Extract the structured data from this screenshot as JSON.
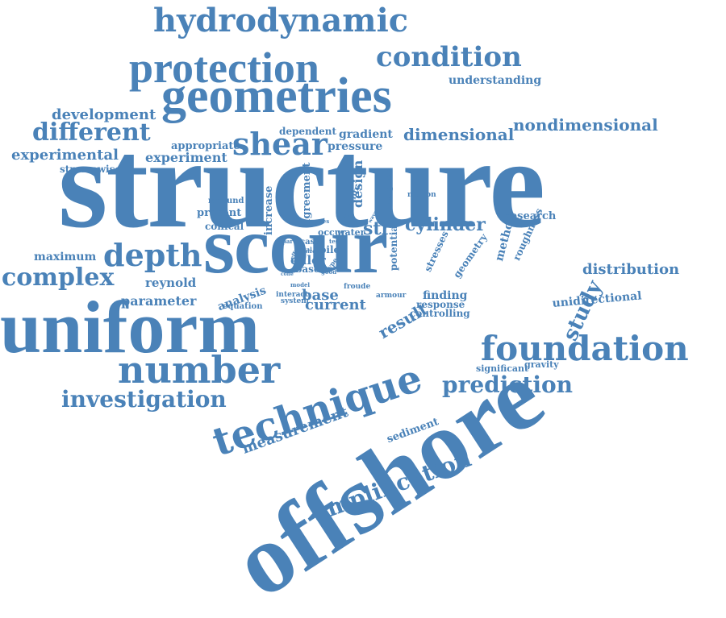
{
  "cloud": {
    "color": "#4a82b8",
    "words": [
      "hydrodynamic",
      "protection",
      "condition",
      "geometries",
      "understanding",
      "development",
      "different",
      "nondimensional",
      "shear",
      "dependent",
      "gradient",
      "dimensional",
      "appropriate",
      "pressure",
      "experimental",
      "experiment",
      "streamwise",
      "structure",
      "increase",
      "agreement",
      "mobility",
      "designer",
      "motion",
      "design",
      "roulund",
      "present",
      "conical",
      "scour",
      "series",
      "occur",
      "water",
      "wave",
      "str",
      "cylinder",
      "research",
      "method",
      "roughness",
      "part",
      "case",
      "local",
      "test",
      "pile",
      "maximum",
      "depth",
      "effect",
      "size",
      "stresses",
      "geometry",
      "complex",
      "euler",
      "type",
      "good",
      "cone",
      "model",
      "based",
      "potential",
      "reynold",
      "analysis",
      "base",
      "distribution",
      "study",
      "parameter",
      "interact",
      "current",
      "equation",
      "system",
      "froude",
      "armour",
      "finding",
      "result",
      "response",
      "controlling",
      "unidirectional",
      "cylindrical",
      "foundation",
      "uniform",
      "offshore",
      "number",
      "technique",
      "significant",
      "gravity",
      "prediction",
      "investigation",
      "sediment",
      "measurement",
      "amplification"
    ]
  }
}
